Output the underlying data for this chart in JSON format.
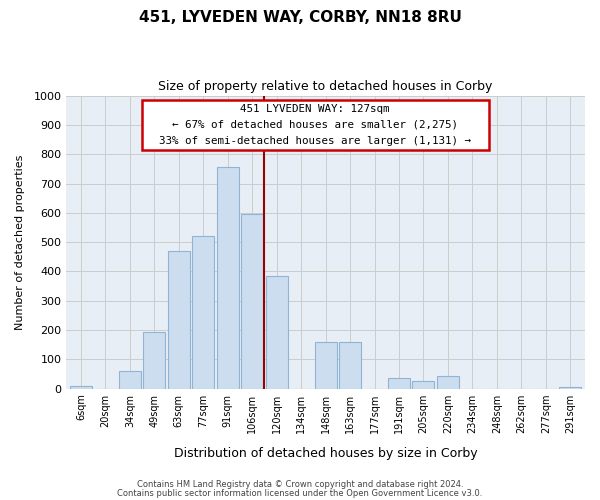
{
  "title": "451, LYVEDEN WAY, CORBY, NN18 8RU",
  "subtitle": "Size of property relative to detached houses in Corby",
  "xlabel": "Distribution of detached houses by size in Corby",
  "ylabel": "Number of detached properties",
  "footnote1": "Contains HM Land Registry data © Crown copyright and database right 2024.",
  "footnote2": "Contains public sector information licensed under the Open Government Licence v3.0.",
  "bin_labels": [
    "6sqm",
    "20sqm",
    "34sqm",
    "49sqm",
    "63sqm",
    "77sqm",
    "91sqm",
    "106sqm",
    "120sqm",
    "134sqm",
    "148sqm",
    "163sqm",
    "177sqm",
    "191sqm",
    "205sqm",
    "220sqm",
    "234sqm",
    "248sqm",
    "262sqm",
    "277sqm",
    "291sqm"
  ],
  "bar_heights": [
    10,
    0,
    60,
    195,
    470,
    520,
    755,
    595,
    385,
    0,
    160,
    160,
    0,
    35,
    25,
    45,
    0,
    0,
    0,
    0,
    5
  ],
  "bar_color": "#ccddf0",
  "bar_edge_color": "#90b4d4",
  "reference_line_label": "120sqm",
  "reference_line_color": "#990000",
  "ylim": [
    0,
    1000
  ],
  "yticks": [
    0,
    100,
    200,
    300,
    400,
    500,
    600,
    700,
    800,
    900,
    1000
  ],
  "annotation_title": "451 LYVEDEN WAY: 127sqm",
  "annotation_line1": "← 67% of detached houses are smaller (2,275)",
  "annotation_line2": "33% of semi-detached houses are larger (1,131) →",
  "annotation_box_color": "#ffffff",
  "annotation_box_edge": "#cc0000",
  "grid_color": "#cccccc",
  "bg_color": "#e8eef5"
}
